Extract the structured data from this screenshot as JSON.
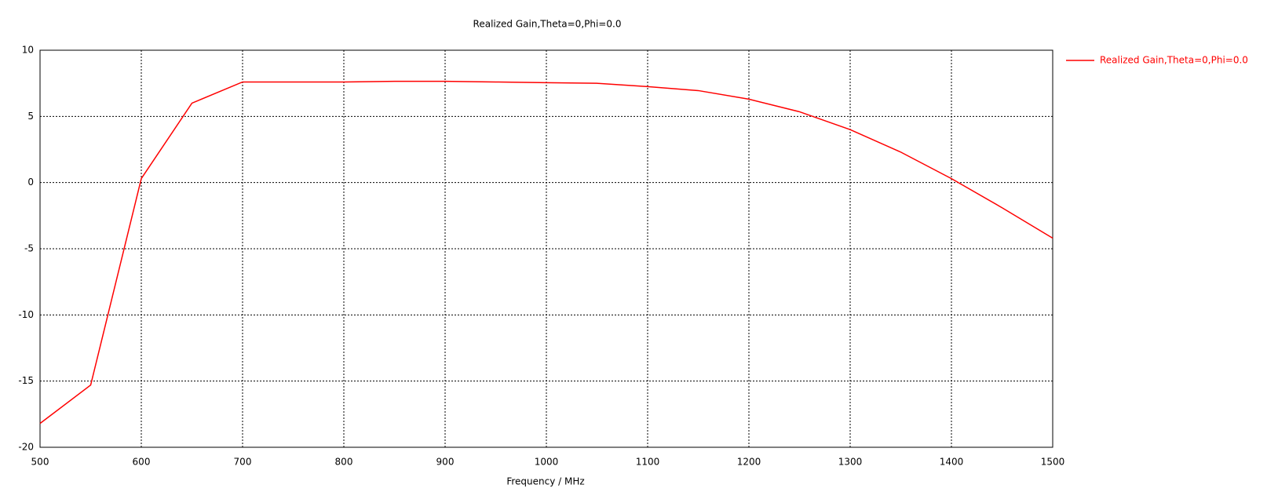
{
  "chart_data": {
    "type": "line",
    "title": "Realized Gain,Theta=0,Phi=0.0",
    "x_label": "Frequency / MHz",
    "x": [
      500,
      550,
      600,
      650,
      700,
      750,
      800,
      850,
      900,
      950,
      1000,
      1050,
      1100,
      1150,
      1200,
      1250,
      1300,
      1350,
      1400,
      1450,
      1500
    ],
    "series": [
      {
        "name": "Realized Gain,Theta=0,Phi=0.0",
        "color": "#ff0000",
        "values": [
          -18.2,
          -15.3,
          0.3,
          6.0,
          7.6,
          7.6,
          7.6,
          7.65,
          7.65,
          7.6,
          7.55,
          7.5,
          7.25,
          6.95,
          6.3,
          5.35,
          4.0,
          2.3,
          0.3,
          -1.9,
          -4.2
        ]
      }
    ],
    "xlim": [
      500,
      1500
    ],
    "xticks": [
      500,
      600,
      700,
      800,
      900,
      1000,
      1100,
      1200,
      1300,
      1400,
      1500
    ],
    "ylim": [
      -20,
      10
    ],
    "yticks": [
      -20,
      -15,
      -10,
      -5,
      0,
      5,
      10
    ],
    "grid": true,
    "legend": "right"
  }
}
